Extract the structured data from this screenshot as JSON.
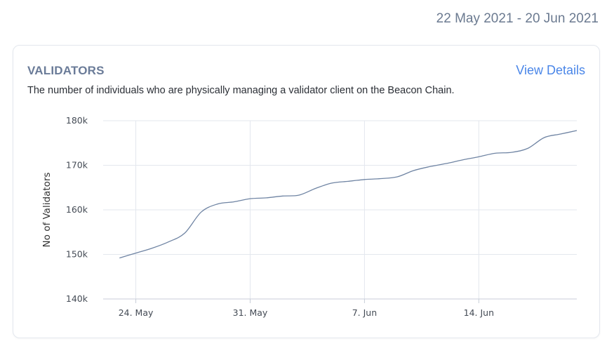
{
  "header": {
    "date_range": "22 May 2021 - 20 Jun 2021"
  },
  "card": {
    "title": "VALIDATORS",
    "view_details_label": "View Details",
    "description": "The number of individuals who are physically managing a validator client on the Beacon Chain."
  },
  "colors": {
    "line": "#6f84a3",
    "grid": "#e3e7ee",
    "accent_link": "#4a86e8",
    "title": "#6a7b98"
  },
  "chart_data": {
    "type": "line",
    "title": "",
    "xlabel": "",
    "ylabel": "No of Validators",
    "x_range": [
      "2021-05-22",
      "2021-06-20"
    ],
    "ylim": [
      140000,
      180000
    ],
    "y_ticks": [
      140000,
      150000,
      160000,
      170000,
      180000
    ],
    "y_tick_labels": [
      "140k",
      "150k",
      "160k",
      "170k",
      "180k"
    ],
    "x_ticks": [
      "2021-05-24",
      "2021-05-31",
      "2021-06-07",
      "2021-06-14"
    ],
    "x_tick_labels": [
      "24. May",
      "31. May",
      "7. Jun",
      "14. Jun"
    ],
    "grid": true,
    "series": [
      {
        "x": [
          "2021-05-23",
          "2021-05-24",
          "2021-05-25",
          "2021-05-26",
          "2021-05-27",
          "2021-05-28",
          "2021-05-29",
          "2021-05-30",
          "2021-05-31",
          "2021-06-01",
          "2021-06-02",
          "2021-06-03",
          "2021-06-04",
          "2021-06-05",
          "2021-06-06",
          "2021-06-07",
          "2021-06-08",
          "2021-06-09",
          "2021-06-10",
          "2021-06-11",
          "2021-06-12",
          "2021-06-13",
          "2021-06-14",
          "2021-06-15",
          "2021-06-16",
          "2021-06-17",
          "2021-06-18",
          "2021-06-19",
          "2021-06-20"
        ],
        "values": [
          149200,
          150300,
          151400,
          152800,
          154800,
          159500,
          161300,
          161800,
          162500,
          162700,
          163100,
          163300,
          164800,
          166000,
          166400,
          166800,
          167000,
          167400,
          168800,
          169700,
          170400,
          171200,
          171900,
          172700,
          172900,
          173800,
          176200,
          177000,
          177800
        ]
      }
    ]
  }
}
